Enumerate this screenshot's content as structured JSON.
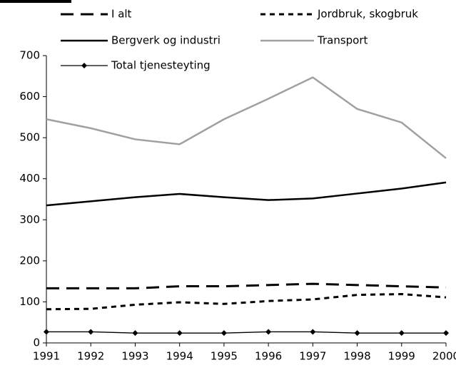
{
  "chart_data": {
    "type": "line",
    "categories": [
      "1991",
      "1992",
      "1993",
      "1994",
      "1995",
      "1996",
      "1997",
      "1998",
      "1999",
      "2000"
    ],
    "series": [
      {
        "name": "I alt",
        "color": "#000000",
        "dash": "dashed",
        "values": [
          133,
          133,
          133,
          138,
          138,
          141,
          144,
          141,
          138,
          135
        ]
      },
      {
        "name": "Jordbruk, skogbruk",
        "color": "#000000",
        "dash": "dotted",
        "values": [
          82,
          83,
          93,
          99,
          95,
          102,
          106,
          117,
          119,
          111
        ]
      },
      {
        "name": "Bergverk og industri",
        "color": "#000000",
        "dash": "solid",
        "values": [
          335,
          345,
          355,
          363,
          355,
          348,
          352,
          364,
          376,
          391
        ]
      },
      {
        "name": "Transport",
        "color": "#a0a0a0",
        "dash": "solid",
        "values": [
          545,
          523,
          496,
          484,
          545,
          595,
          647,
          570,
          537,
          450
        ]
      },
      {
        "name": "Total tjenesteyting",
        "color": "#000000",
        "dash": "thin",
        "marker": "diamond",
        "values": [
          27,
          27,
          24,
          24,
          24,
          27,
          27,
          24,
          24,
          24
        ]
      }
    ],
    "ylim": [
      0,
      700
    ],
    "yticks": [
      0,
      100,
      200,
      300,
      400,
      500,
      600,
      700
    ],
    "grid": false
  }
}
